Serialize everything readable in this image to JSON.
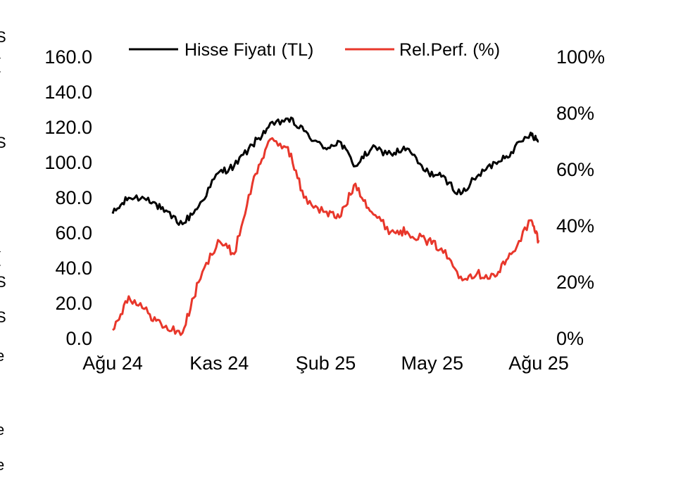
{
  "sidebar_fragments": [
    "S",
    "(",
    "l",
    "'",
    "S",
    "l",
    "(",
    "S",
    "S",
    "e",
    "i",
    "e",
    "e"
  ],
  "chart_data": {
    "type": "line",
    "title": "",
    "xlabel": "",
    "ylabel": "",
    "x_tick_labels": [
      "Ağu 24",
      "Kas 24",
      "Şub 25",
      "May 25",
      "Ağu 25"
    ],
    "y_left": {
      "lim": [
        0,
        160
      ],
      "ticks": [
        "0.0",
        "20.0",
        "40.0",
        "60.0",
        "80.0",
        "100.0",
        "120.0",
        "140.0",
        "160.0"
      ]
    },
    "y_right": {
      "lim": [
        0,
        100
      ],
      "ticks": [
        "0%",
        "20%",
        "40%",
        "60%",
        "80%",
        "100%"
      ]
    },
    "legend_position": "top-center",
    "grid": false,
    "x": [
      "2024-08-01",
      "2024-08-15",
      "2024-09-01",
      "2024-09-15",
      "2024-10-01",
      "2024-10-15",
      "2024-11-01",
      "2024-11-15",
      "2024-12-01",
      "2024-12-15",
      "2025-01-01",
      "2025-01-15",
      "2025-02-01",
      "2025-02-15",
      "2025-03-01",
      "2025-03-15",
      "2025-04-01",
      "2025-04-15",
      "2025-05-01",
      "2025-05-15",
      "2025-06-01",
      "2025-06-15",
      "2025-07-01",
      "2025-07-15",
      "2025-08-01",
      "2025-08-08"
    ],
    "series": [
      {
        "name": "Hisse Fiyatı (TL)",
        "axis": "left",
        "color": "#000000",
        "values": [
          71,
          80,
          80,
          72,
          65,
          75,
          94,
          98,
          110,
          120,
          125,
          118,
          108,
          112,
          98,
          108,
          105,
          108,
          95,
          92,
          82,
          92,
          100,
          106,
          117,
          112
        ]
      },
      {
        "name": "Rel.Perf. (%)",
        "axis": "right",
        "color": "#e8372b",
        "values": [
          3,
          15,
          9,
          4,
          2,
          20,
          35,
          30,
          55,
          70,
          68,
          50,
          45,
          43,
          55,
          45,
          38,
          38,
          35,
          32,
          22,
          23,
          22,
          30,
          42,
          35
        ]
      }
    ]
  }
}
